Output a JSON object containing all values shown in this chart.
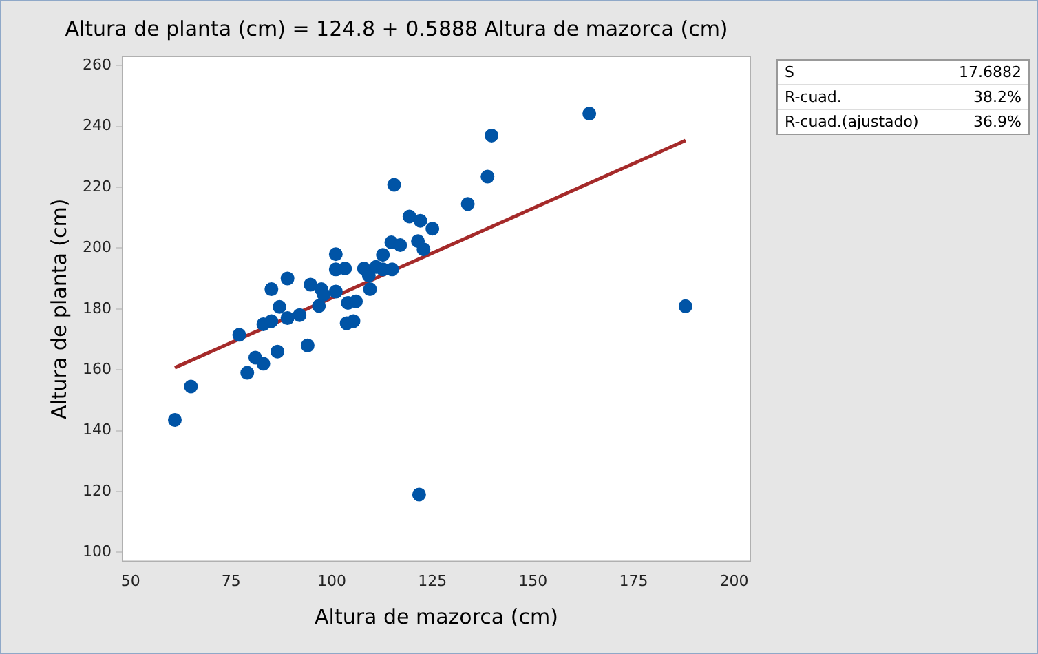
{
  "chart_data": {
    "type": "scatter",
    "title": "Altura de planta (cm) = 124.8 + 0.5888 Altura de mazorca (cm)",
    "xlabel": "Altura de mazorca (cm)",
    "ylabel": "Altura de planta (cm)",
    "annotations": [
      "S 17.6882",
      "R-cuad. 38.2%",
      "R-cuad.(ajustado) 36.9%"
    ],
    "xlim": [
      48,
      204
    ],
    "xticks": [
      50,
      75,
      100,
      125,
      150,
      175,
      200
    ],
    "ylim": [
      97,
      263
    ],
    "yticks": [
      100,
      120,
      140,
      160,
      180,
      200,
      220,
      240,
      260
    ],
    "grid": false,
    "legend": false,
    "marker": "circle",
    "series": [
      {
        "type": "scatter",
        "color": "#0054a6",
        "x": [
          61,
          65,
          77,
          79,
          81,
          83,
          83,
          85,
          85,
          86,
          87,
          86.5,
          89,
          89,
          92,
          94,
          94.7,
          96.8,
          97.4,
          98,
          101,
          101,
          101,
          103.7,
          105.4,
          104,
          106,
          103.3,
          108,
          108.6,
          109.5,
          109.2,
          111,
          112.7,
          112.7,
          115,
          114.8,
          115.5,
          117,
          119.3,
          121.4,
          122,
          122.8,
          125,
          121.7,
          133.8,
          138.7,
          139.7,
          164,
          187.9
        ],
        "values": [
          143.5,
          154.5,
          171.5,
          159,
          164,
          162,
          175,
          176,
          186.5,
          null,
          180.7,
          166,
          177,
          190,
          178,
          168,
          188,
          181,
          186.5,
          184.7,
          193,
          198,
          185.7,
          175.3,
          176,
          182,
          182.5,
          193.3,
          193.3,
          null,
          186.5,
          191,
          193.8,
          193,
          197.8,
          193,
          201.9,
          220.8,
          201,
          210.4,
          202.3,
          209,
          199.6,
          206.4,
          119,
          214.5,
          223.5,
          237,
          244.2,
          180.9
        ]
      },
      {
        "type": "line",
        "color": "#a52a2a",
        "x": [
          61,
          187.9
        ],
        "values": [
          160.7,
          235.4
        ],
        "marker": "none",
        "line_style": "solid"
      }
    ]
  }
}
